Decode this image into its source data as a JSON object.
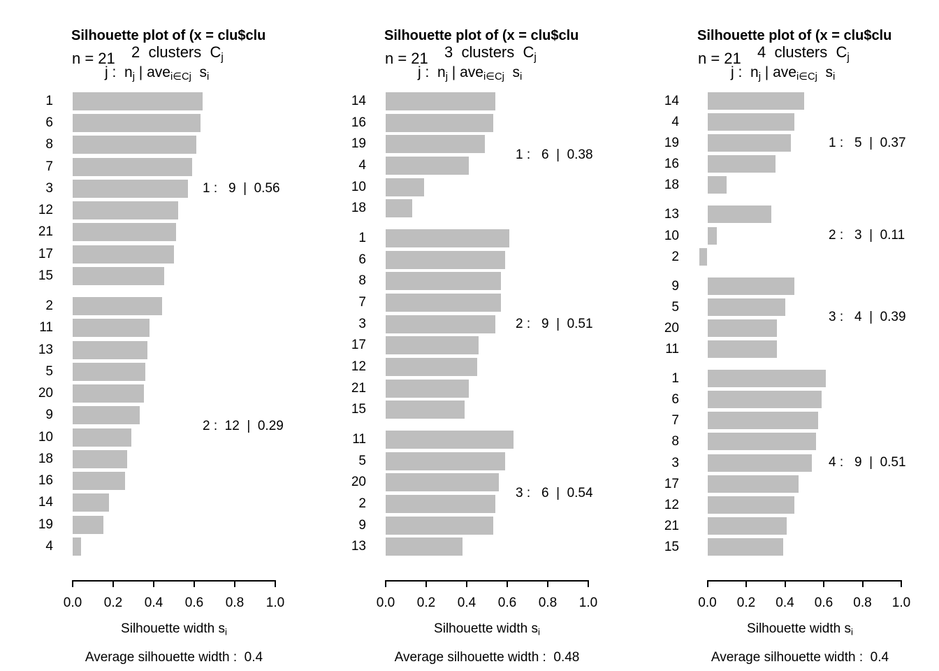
{
  "figure": {
    "background": "#ffffff",
    "bar_color": "#bebebe",
    "text_color": "#000000",
    "xlabel_segments": [
      {
        "t": "Silhouette width s"
      },
      {
        "t": "i",
        "sub": true
      }
    ],
    "formula_segments": [
      {
        "t": "j :  n"
      },
      {
        "t": "j",
        "sub": true
      },
      {
        "t": " | ave"
      },
      {
        "t": "i∈Cj",
        "sub": true
      },
      {
        "t": "  s"
      },
      {
        "t": "i",
        "sub": true
      }
    ]
  },
  "chart_data": [
    {
      "type": "bar",
      "orientation": "horizontal",
      "k": 2,
      "n": 21,
      "title": "Silhouette plot of (x = clu$clu",
      "n_label": "n = 21",
      "clusters_heading": [
        {
          "t": "2  clusters  C"
        },
        {
          "t": "j",
          "sub": true
        }
      ],
      "xlim": [
        0,
        1
      ],
      "xticks": [
        "0.0",
        "0.2",
        "0.4",
        "0.6",
        "0.8",
        "1.0"
      ],
      "grid": false,
      "average_value": 0.4,
      "average_label": "Average silhouette width :  0.4",
      "clusters": [
        {
          "j": 1,
          "size": 9,
          "ave": 0.56,
          "annotation": "1 :   9  |  0.56",
          "obs": [
            "1",
            "6",
            "8",
            "7",
            "3",
            "12",
            "21",
            "17",
            "15"
          ],
          "values": [
            0.64,
            0.63,
            0.61,
            0.59,
            0.57,
            0.52,
            0.51,
            0.5,
            0.45
          ]
        },
        {
          "j": 2,
          "size": 12,
          "ave": 0.29,
          "annotation": "2 :  12  |  0.29",
          "obs": [
            "2",
            "11",
            "13",
            "5",
            "20",
            "9",
            "10",
            "18",
            "16",
            "14",
            "19",
            "4"
          ],
          "values": [
            0.44,
            0.38,
            0.37,
            0.36,
            0.35,
            0.33,
            0.29,
            0.27,
            0.26,
            0.18,
            0.15,
            0.04
          ]
        }
      ]
    },
    {
      "type": "bar",
      "orientation": "horizontal",
      "k": 3,
      "n": 21,
      "title": "Silhouette plot of (x = clu$clu",
      "n_label": "n = 21",
      "clusters_heading": [
        {
          "t": "3  clusters  C"
        },
        {
          "t": "j",
          "sub": true
        }
      ],
      "xlim": [
        0,
        1
      ],
      "xticks": [
        "0.0",
        "0.2",
        "0.4",
        "0.6",
        "0.8",
        "1.0"
      ],
      "grid": false,
      "average_value": 0.48,
      "average_label": "Average silhouette width :  0.48",
      "clusters": [
        {
          "j": 1,
          "size": 6,
          "ave": 0.38,
          "annotation": "1 :   6  |  0.38",
          "obs": [
            "14",
            "16",
            "19",
            "4",
            "10",
            "18"
          ],
          "values": [
            0.54,
            0.53,
            0.49,
            0.41,
            0.19,
            0.13
          ]
        },
        {
          "j": 2,
          "size": 9,
          "ave": 0.51,
          "annotation": "2 :   9  |  0.51",
          "obs": [
            "1",
            "6",
            "8",
            "7",
            "3",
            "17",
            "12",
            "21",
            "15"
          ],
          "values": [
            0.61,
            0.59,
            0.57,
            0.57,
            0.54,
            0.46,
            0.45,
            0.41,
            0.39
          ]
        },
        {
          "j": 3,
          "size": 6,
          "ave": 0.54,
          "annotation": "3 :   6  |  0.54",
          "obs": [
            "11",
            "5",
            "20",
            "2",
            "9",
            "13"
          ],
          "values": [
            0.63,
            0.59,
            0.56,
            0.54,
            0.53,
            0.38
          ]
        }
      ]
    },
    {
      "type": "bar",
      "orientation": "horizontal",
      "k": 4,
      "n": 21,
      "title": "Silhouette plot of (x = clu$clu",
      "n_label": "n = 21",
      "clusters_heading": [
        {
          "t": "4  clusters  C"
        },
        {
          "t": "j",
          "sub": true
        }
      ],
      "xlim": [
        -0.045,
        1
      ],
      "xticks": [
        "0.0",
        "0.2",
        "0.4",
        "0.6",
        "0.8",
        "1.0"
      ],
      "grid": false,
      "average_value": 0.4,
      "average_label": "Average silhouette width :  0.4",
      "clusters": [
        {
          "j": 1,
          "size": 5,
          "ave": 0.37,
          "annotation": "1 :   5  |  0.37",
          "obs": [
            "14",
            "4",
            "19",
            "16",
            "18"
          ],
          "values": [
            0.5,
            0.45,
            0.43,
            0.35,
            0.1
          ]
        },
        {
          "j": 2,
          "size": 3,
          "ave": 0.11,
          "annotation": "2 :   3  |  0.11",
          "obs": [
            "13",
            "10",
            "2"
          ],
          "values": [
            0.33,
            0.05,
            -0.04
          ]
        },
        {
          "j": 3,
          "size": 4,
          "ave": 0.39,
          "annotation": "3 :   4  |  0.39",
          "obs": [
            "9",
            "5",
            "20",
            "11"
          ],
          "values": [
            0.45,
            0.4,
            0.36,
            0.36
          ]
        },
        {
          "j": 4,
          "size": 9,
          "ave": 0.51,
          "annotation": "4 :   9  |  0.51",
          "obs": [
            "1",
            "6",
            "7",
            "8",
            "3",
            "17",
            "12",
            "21",
            "15"
          ],
          "values": [
            0.61,
            0.59,
            0.57,
            0.56,
            0.54,
            0.47,
            0.45,
            0.41,
            0.39
          ]
        }
      ]
    }
  ]
}
